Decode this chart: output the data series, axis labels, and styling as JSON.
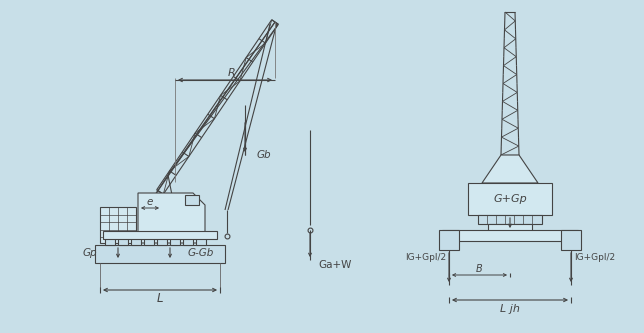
{
  "bg_color": "#c8dfe8",
  "line_color": "#444444",
  "fig_width": 6.44,
  "fig_height": 3.33,
  "labels": {
    "R": "R",
    "Gb": "Gb",
    "Ga_W": "Ga+W",
    "e": "e",
    "Gp": "Gp",
    "G_Gb": "G-Gb",
    "L": "L",
    "G_Gp": "G+Gp",
    "lG_Gpl_2_left": "lG+Gpl/2",
    "lG_Gpl_2_right": "lG+Gpl/2",
    "B": "B",
    "Ljh": "L jh"
  }
}
